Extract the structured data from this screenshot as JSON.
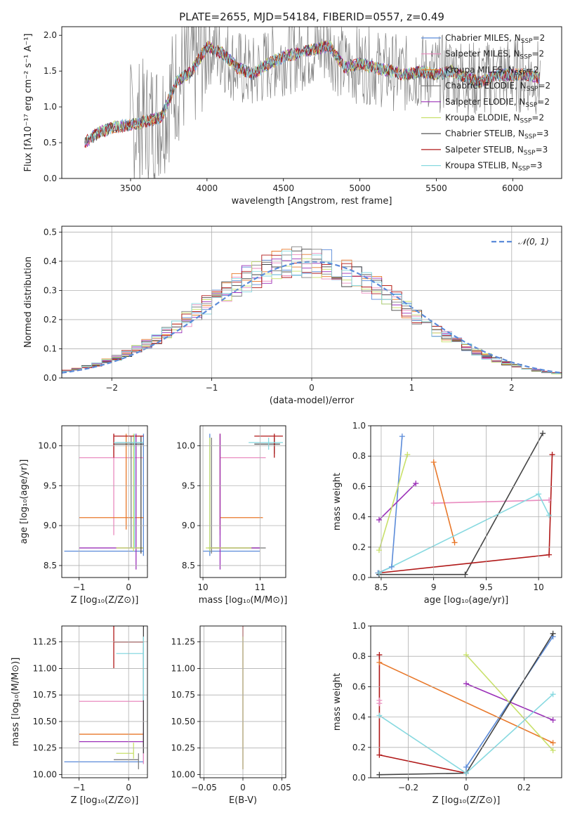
{
  "title": "PLATE=2655, MJD=54184, FIBERID=0557, z=0.49",
  "colors": {
    "model_colors": [
      "#5b8bd9",
      "#e98bbf",
      "#e8782a",
      "#7f7f7f",
      "#9b30b8",
      "#c8e06a",
      "#444444",
      "#b01818",
      "#87d9e0"
    ],
    "gaussian": "#5b8bd9",
    "grid": "#b0b0b0"
  },
  "chart_data": [
    {
      "id": "spectrum",
      "type": "line",
      "xlabel": "wavelength [Angstrom, rest frame]",
      "ylabel": "Flux [fλ10⁻¹⁷ erg cm⁻² s⁻¹ A⁻¹]",
      "xlim": [
        3050,
        6320
      ],
      "ylim": [
        0,
        2.12
      ],
      "xticks": [
        3500,
        4000,
        4500,
        5000,
        5500,
        6000
      ],
      "yticks": [
        0.0,
        0.5,
        1.0,
        1.5,
        2.0
      ],
      "grid": false,
      "legend_position": "top-right",
      "legend": [
        "Chabrier MILES, N_SSP=2",
        "Salpeter MILES, N_SSP=2",
        "Kroupa MILES, N_SSP=2",
        "Chabrier ELODIE, N_SSP=2",
        "Salpeter ELODIE, N_SSP=2",
        "Kroupa ELODIE, N_SSP=2",
        "Chabrier STELIB, N_SSP=3",
        "Salpeter STELIB, N_SSP=3",
        "Kroupa STELIB, N_SSP=3"
      ],
      "continuum_x": [
        3200,
        3300,
        3400,
        3500,
        3600,
        3700,
        3800,
        3900,
        4000,
        4100,
        4200,
        4300,
        4400,
        4500,
        4600,
        4700,
        4800,
        4900,
        5000,
        5100,
        5200,
        5300,
        5400,
        5500,
        5600,
        5700,
        5800,
        5900,
        6000,
        6100,
        6180
      ],
      "continuum_y": [
        0.5,
        0.65,
        0.72,
        0.75,
        0.8,
        0.85,
        1.35,
        1.5,
        1.85,
        1.75,
        1.55,
        1.45,
        1.6,
        1.7,
        1.75,
        1.8,
        1.85,
        1.55,
        1.6,
        1.55,
        1.5,
        1.45,
        1.5,
        1.45,
        1.5,
        1.4,
        1.35,
        1.45,
        1.45,
        1.45,
        1.4
      ]
    },
    {
      "id": "residuals",
      "type": "line",
      "xlabel": "(data-model)/error",
      "ylabel": "Normed distribution",
      "xlim": [
        -2.5,
        2.5
      ],
      "ylim": [
        0,
        0.52
      ],
      "xticks": [
        -2,
        -1,
        0,
        1,
        2
      ],
      "yticks": [
        0.0,
        0.1,
        0.2,
        0.3,
        0.4,
        0.5
      ],
      "grid": true,
      "legend_position": "top-right",
      "legend": [
        "𝒩(0, 1)"
      ],
      "bin_width": 0.1,
      "gaussian": {
        "mu": 0,
        "sigma": 1
      }
    },
    {
      "id": "age_vs_Z",
      "type": "scatter",
      "xlabel": "Z [log₁₀(Z/Z⊙)]",
      "ylabel": "age  [log₁₀(age/yr)]",
      "xlim": [
        -1.35,
        0.38
      ],
      "ylim": [
        8.35,
        10.25
      ],
      "xticks": [
        -1,
        0
      ],
      "yticks": [
        8.5,
        9.0,
        9.5,
        10.0
      ],
      "grid": true,
      "crosses": [
        {
          "x": [
            -1.3,
            0.3
          ],
          "y": 8.68,
          "cx": 0.3,
          "cy": [
            8.62,
            10.15
          ],
          "c": 0
        },
        {
          "x": [
            -1.0,
            0.3
          ],
          "y": 9.85,
          "cx": -0.3,
          "cy": [
            8.88,
            10.15
          ],
          "c": 1
        },
        {
          "x": [
            -1.0,
            0.3
          ],
          "y": 9.1,
          "cx": -0.05,
          "cy": [
            8.95,
            10.15
          ],
          "c": 2
        },
        {
          "x": [
            -0.25,
            0.3
          ],
          "y": 10.04,
          "cx": 0.05,
          "cy": [
            8.72,
            10.12
          ],
          "c": 3
        },
        {
          "x": [
            -1.0,
            0.3
          ],
          "y": 8.72,
          "cx": 0.15,
          "cy": [
            8.45,
            10.15
          ],
          "c": 4
        },
        {
          "x": [
            -0.25,
            0.3
          ],
          "y": 8.72,
          "cx": 0.1,
          "cy": [
            8.68,
            10.15
          ],
          "c": 5
        },
        {
          "x": [
            -0.3,
            0.3
          ],
          "y": 10.02,
          "cx": 0.25,
          "cy": [
            8.65,
            10.12
          ],
          "c": 6
        },
        {
          "x": [
            -0.3,
            0.3
          ],
          "y": 10.12,
          "cx": -0.3,
          "cy": [
            9.85,
            10.15
          ],
          "c": 7
        },
        {
          "x": [
            -0.3,
            0.3
          ],
          "y": 10.04,
          "cx": 0.12,
          "cy": [
            8.72,
            10.15
          ],
          "c": 8
        }
      ]
    },
    {
      "id": "age_vs_mass",
      "type": "scatter",
      "xlabel": "mass [log₁₀(M/M⊙)]",
      "xlim": [
        9.95,
        11.45
      ],
      "ylim": [
        8.35,
        10.25
      ],
      "xticks": [
        10,
        11
      ],
      "yticks": [
        8.5,
        9.0,
        9.5,
        10.0
      ],
      "grid": true,
      "crosses": [
        {
          "x": [
            10.0,
            11.0
          ],
          "y": 8.68,
          "cx": 10.12,
          "cy": [
            8.62,
            10.15
          ],
          "c": 0
        },
        {
          "x": [
            10.3,
            11.1
          ],
          "y": 9.85,
          "cx": 10.3,
          "cy": [
            8.88,
            10.15
          ],
          "c": 1
        },
        {
          "x": [
            10.3,
            11.05
          ],
          "y": 9.1,
          "cx": 10.3,
          "cy": [
            8.95,
            10.15
          ],
          "c": 2
        },
        {
          "x": [
            10.1,
            11.1
          ],
          "y": 8.72,
          "cx": 10.15,
          "cy": [
            8.65,
            10.1
          ],
          "c": 3
        },
        {
          "x": [
            10.1,
            11.0
          ],
          "y": 8.72,
          "cx": 10.3,
          "cy": [
            8.45,
            10.15
          ],
          "c": 4
        },
        {
          "x": [
            10.05,
            10.85
          ],
          "y": 8.72,
          "cx": 10.12,
          "cy": [
            8.68,
            10.1
          ],
          "c": 5
        },
        {
          "x": [
            10.9,
            11.35
          ],
          "y": 10.02,
          "cx": 11.25,
          "cy": [
            9.9,
            10.1
          ],
          "c": 6
        },
        {
          "x": [
            10.9,
            11.4
          ],
          "y": 10.12,
          "cx": 11.25,
          "cy": [
            9.85,
            10.15
          ],
          "c": 7
        },
        {
          "x": [
            10.8,
            11.4
          ],
          "y": 10.04,
          "cx": 11.15,
          "cy": [
            9.95,
            10.1
          ],
          "c": 8
        }
      ]
    },
    {
      "id": "weight_vs_age",
      "type": "line",
      "xlabel": "age  [log₁₀(age/yr)]",
      "ylabel": "mass weight",
      "xlim": [
        8.4,
        10.22
      ],
      "ylim": [
        0,
        1.0
      ],
      "xticks": [
        8.5,
        9.0,
        9.5,
        10.0
      ],
      "yticks": [
        0.0,
        0.2,
        0.4,
        0.6,
        0.8,
        1.0
      ],
      "grid": true,
      "series": [
        {
          "c": 0,
          "x": [
            8.47,
            8.6,
            8.7
          ],
          "y": [
            0.03,
            0.07,
            0.93
          ]
        },
        {
          "c": 1,
          "x": [
            9.0,
            10.1
          ],
          "y": [
            0.49,
            0.51
          ]
        },
        {
          "c": 2,
          "x": [
            9.0,
            9.2
          ],
          "y": [
            0.76,
            0.23
          ]
        },
        {
          "c": 4,
          "x": [
            8.48,
            8.83
          ],
          "y": [
            0.38,
            0.62
          ]
        },
        {
          "c": 5,
          "x": [
            8.48,
            8.75
          ],
          "y": [
            0.18,
            0.81
          ]
        },
        {
          "c": 6,
          "x": [
            8.48,
            9.3,
            10.04
          ],
          "y": [
            0.02,
            0.02,
            0.95
          ]
        },
        {
          "c": 7,
          "x": [
            8.48,
            10.1,
            10.13
          ],
          "y": [
            0.03,
            0.15,
            0.81
          ]
        },
        {
          "c": 8,
          "x": [
            8.48,
            10.0,
            10.1
          ],
          "y": [
            0.03,
            0.55,
            0.41
          ]
        }
      ]
    },
    {
      "id": "mass_vs_Z",
      "type": "scatter",
      "xlabel": "Z [log₁₀(Z/Z⊙)]",
      "ylabel": "mass [log₁₀(M/M⊙)]",
      "xlim": [
        -1.35,
        0.38
      ],
      "ylim": [
        9.97,
        11.4
      ],
      "xticks": [
        -1,
        0
      ],
      "yticks": [
        10.0,
        10.25,
        10.5,
        10.75,
        11.0,
        11.25
      ],
      "grid": true,
      "crosses": [
        {
          "x": [
            -1.3,
            0.3
          ],
          "y": 10.12,
          "cx": 0.3,
          "cy": [
            10.1,
            11.2
          ],
          "c": 0
        },
        {
          "x": [
            -1.0,
            0.3
          ],
          "y": 10.69,
          "cx": 0.3,
          "cy": [
            10.1,
            10.7
          ],
          "c": 1
        },
        {
          "x": [
            -1.0,
            0.3
          ],
          "y": 10.38,
          "cx": 0.3,
          "cy": [
            10.3,
            10.4
          ],
          "c": 2
        },
        {
          "x": [
            -0.3,
            0.2
          ],
          "y": 10.14,
          "cx": 0.2,
          "cy": [
            10.05,
            10.2
          ],
          "c": 3
        },
        {
          "x": [
            -1.0,
            0.3
          ],
          "y": 10.31,
          "cx": 0.3,
          "cy": [
            10.25,
            10.4
          ],
          "c": 4
        },
        {
          "x": [
            -0.25,
            0.1
          ],
          "y": 10.2,
          "cx": 0.1,
          "cy": [
            10.15,
            10.3
          ],
          "c": 5
        },
        {
          "x": [
            -0.3,
            0.3
          ],
          "y": 11.25,
          "cx": 0.3,
          "cy": [
            10.2,
            11.4
          ],
          "c": 6
        },
        {
          "x": [
            -0.3,
            0.3
          ],
          "y": 11.25,
          "cx": -0.3,
          "cy": [
            11.0,
            11.4
          ],
          "c": 7
        },
        {
          "x": [
            -0.25,
            0.3
          ],
          "y": 11.14,
          "cx": 0.3,
          "cy": [
            10.7,
            11.3
          ],
          "c": 8
        }
      ]
    },
    {
      "id": "mass_vs_EBV",
      "type": "scatter",
      "xlabel": "E(B-V)",
      "xlim": [
        -0.055,
        0.055
      ],
      "ylim": [
        9.97,
        11.4
      ],
      "xticks": [
        -0.05,
        0.0,
        0.05
      ],
      "yticks": [
        10.0,
        10.25,
        10.5,
        10.75,
        11.0,
        11.25
      ],
      "grid": true,
      "vlines": [
        {
          "x": 0,
          "y": [
            10.05,
            11.4
          ],
          "c": 7
        },
        {
          "x": 0,
          "y": [
            10.05,
            11.3
          ],
          "c": 5
        }
      ]
    },
    {
      "id": "weight_vs_Z",
      "type": "line",
      "xlabel": "Z [log₁₀(Z/Z⊙)]",
      "ylabel": "mass weight",
      "xlim": [
        -0.33,
        0.33
      ],
      "ylim": [
        0,
        1.0
      ],
      "xticks": [
        -0.2,
        0.0,
        0.2
      ],
      "yticks": [
        0.0,
        0.2,
        0.4,
        0.6,
        0.8,
        1.0
      ],
      "grid": true,
      "series": [
        {
          "c": 0,
          "x": [
            0.0,
            0.0,
            0.3
          ],
          "y": [
            0.03,
            0.07,
            0.93
          ]
        },
        {
          "c": 1,
          "x": [
            -0.3,
            -0.3
          ],
          "y": [
            0.49,
            0.51
          ]
        },
        {
          "c": 2,
          "x": [
            -0.3,
            0.3
          ],
          "y": [
            0.76,
            0.23
          ]
        },
        {
          "c": 4,
          "x": [
            0.0,
            0.3
          ],
          "y": [
            0.62,
            0.38
          ]
        },
        {
          "c": 5,
          "x": [
            0.0,
            0.3
          ],
          "y": [
            0.81,
            0.18
          ]
        },
        {
          "c": 6,
          "x": [
            -0.3,
            0.0,
            0.3
          ],
          "y": [
            0.02,
            0.03,
            0.95
          ]
        },
        {
          "c": 7,
          "x": [
            -0.3,
            -0.3,
            0.0
          ],
          "y": [
            0.81,
            0.15,
            0.03
          ]
        },
        {
          "c": 8,
          "x": [
            -0.3,
            0.0,
            0.3
          ],
          "y": [
            0.41,
            0.03,
            0.55
          ]
        }
      ]
    }
  ]
}
